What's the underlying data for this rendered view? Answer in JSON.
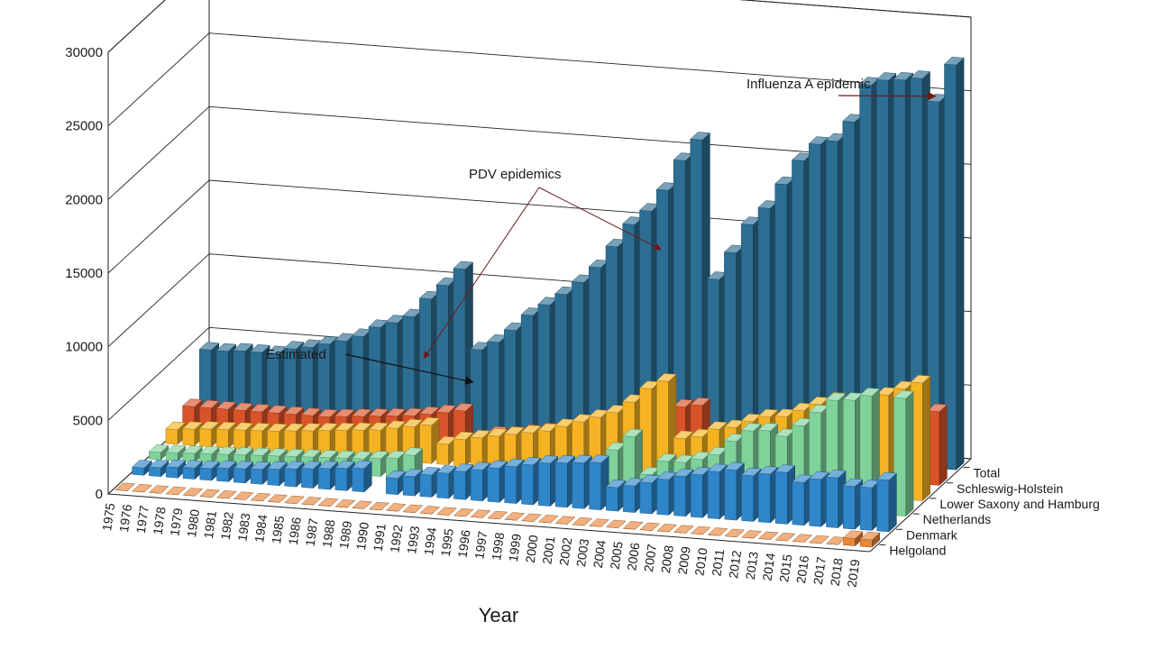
{
  "chart_data": {
    "type": "bar",
    "subtype": "3d-stacked-depth-bar",
    "title": "",
    "xlabel": "Year",
    "ylabel": "",
    "ylim": [
      0,
      30000
    ],
    "y_ticks": [
      "0",
      "5000",
      "10000",
      "15000",
      "20000",
      "25000",
      "30000"
    ],
    "grid": true,
    "categories": [
      "1975",
      "1976",
      "1977",
      "1978",
      "1979",
      "1980",
      "1981",
      "1982",
      "1983",
      "1984",
      "1985",
      "1986",
      "1987",
      "1988",
      "1989",
      "1990",
      "1991",
      "1992",
      "1993",
      "1994",
      "1995",
      "1996",
      "1997",
      "1998",
      "1999",
      "2000",
      "2001",
      "2002",
      "2003",
      "2004",
      "2005",
      "2006",
      "2007",
      "2008",
      "2009",
      "2010",
      "2011",
      "2012",
      "2013",
      "2014",
      "2015",
      "2016",
      "2017",
      "2018",
      "2019"
    ],
    "series": [
      {
        "name": "Helgoland",
        "color": "#e8863a",
        "values": [
          0,
          0,
          0,
          0,
          0,
          0,
          0,
          0,
          0,
          0,
          0,
          0,
          0,
          0,
          0,
          0,
          0,
          0,
          0,
          0,
          0,
          0,
          0,
          0,
          0,
          0,
          0,
          0,
          0,
          0,
          0,
          0,
          0,
          0,
          0,
          0,
          0,
          0,
          0,
          0,
          0,
          0,
          0,
          500,
          500
        ]
      },
      {
        "name": "Denmark",
        "color": "#2f86c9",
        "values": [
          500,
          600,
          700,
          750,
          800,
          900,
          950,
          1000,
          1100,
          1200,
          1300,
          1400,
          1500,
          1600,
          null,
          1100,
          1300,
          1500,
          1700,
          1900,
          2100,
          2300,
          2500,
          2700,
          2900,
          3000,
          3100,
          3200,
          1600,
          1800,
          2100,
          2400,
          2700,
          2900,
          3200,
          3400,
          3100,
          3300,
          3500,
          2900,
          3200,
          3400,
          2900,
          2900,
          3500
        ]
      },
      {
        "name": "Netherlands",
        "color": "#7fd39a",
        "values": [
          500,
          550,
          600,
          650,
          700,
          750,
          800,
          850,
          900,
          950,
          1000,
          1050,
          1100,
          1200,
          1300,
          1600,
          350,
          550,
          600,
          650,
          700,
          800,
          900,
          1000,
          1100,
          1300,
          1500,
          3000,
          4000,
          1500,
          2500,
          2500,
          2800,
          3200,
          4200,
          5000,
          5100,
          4800,
          5600,
          6600,
          7500,
          7600,
          8000,
          0,
          8000
        ]
      },
      {
        "name": "Lower Saxony and Hamburg",
        "color": "#f5b324",
        "values": [
          1000,
          1100,
          1200,
          1250,
          1300,
          1350,
          1400,
          1500,
          1600,
          1700,
          1800,
          1900,
          2000,
          2200,
          2400,
          2600,
          1400,
          1800,
          2000,
          2200,
          2400,
          2600,
          2800,
          3200,
          3600,
          4000,
          4400,
          5200,
          6200,
          6800,
          3000,
          3200,
          3800,
          4000,
          4500,
          4900,
          5000,
          5500,
          6000,
          6400,
          6000,
          6500,
          7000,
          7500,
          8000
        ]
      },
      {
        "name": "Schleswig-Holstein",
        "color": "#d9532a",
        "values": [
          1500,
          1500,
          1500,
          1500,
          1500,
          1500,
          1500,
          1500,
          1500,
          1600,
          1700,
          1800,
          1900,
          2000,
          2200,
          2400,
          2600,
          500,
          1200,
          1300,
          1500,
          1700,
          1900,
          2100,
          2300,
          2500,
          2700,
          3000,
          3500,
          4000,
          4200,
          1800,
          2300,
          2800,
          3300,
          3500,
          3800,
          4000,
          4400,
          5000,
          5600,
          5800,
          6000,
          5600,
          5000
        ]
      },
      {
        "name": "Total",
        "color": "#2d6e93",
        "values": [
          4300,
          4300,
          4400,
          4400,
          4400,
          4800,
          5000,
          5300,
          5600,
          6000,
          6700,
          7100,
          7600,
          8900,
          9900,
          11100,
          5700,
          6300,
          7200,
          8300,
          9100,
          9900,
          10800,
          11900,
          13400,
          15000,
          16000,
          17500,
          19600,
          21100,
          11700,
          13600,
          15600,
          16800,
          18500,
          20200,
          21400,
          21700,
          23100,
          25700,
          26100,
          26200,
          26400,
          24900,
          27500
        ]
      }
    ],
    "annotations": [
      {
        "text": "Estimated",
        "target_year": "1991"
      },
      {
        "text": "PDV epidemics",
        "target_years": [
          "1988",
          "2002"
        ]
      },
      {
        "text": "Influenza A epidemic",
        "target_year": "2018"
      }
    ],
    "legend_placement": "depth-axis labels (right)"
  }
}
